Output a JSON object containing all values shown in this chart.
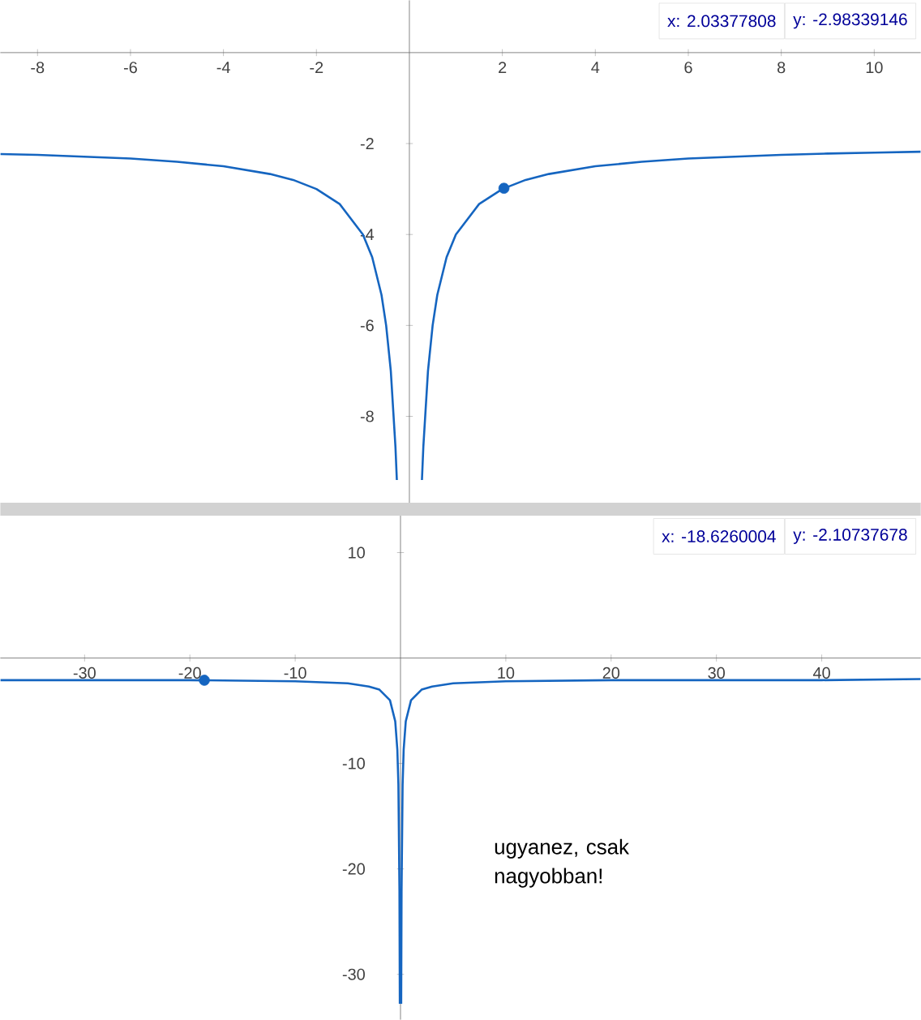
{
  "chart_data": [
    {
      "type": "line",
      "xlim": [
        -8.8,
        11
      ],
      "ylim": [
        -9.9,
        1.15
      ],
      "xticks": [
        -8,
        -6,
        -4,
        -2,
        2,
        4,
        6,
        8,
        10
      ],
      "yticks": [
        -2,
        -4,
        -6,
        -8
      ],
      "annotations": [
        "x: 2.03377808",
        "y: -2.98339146"
      ],
      "series": [
        {
          "color": "#1565c0",
          "x": [
            -8.8,
            -8,
            -7,
            -6,
            -5,
            -4,
            -3,
            -2.5,
            -2,
            -1.5,
            -1,
            -0.8,
            -0.6,
            -0.5,
            -0.4,
            -0.3,
            -0.27,
            0,
            0.27,
            0.3,
            0.4,
            0.5,
            0.6,
            0.8,
            1,
            1.5,
            2,
            2.5,
            3,
            4,
            5,
            6,
            7,
            8,
            9,
            10,
            11
          ],
          "values": [
            -2.23,
            -2.25,
            -2.29,
            -2.33,
            -2.4,
            -2.5,
            -2.67,
            -2.8,
            -3,
            -3.33,
            -4,
            -4.5,
            -5.33,
            -6,
            -7,
            -8.67,
            -9.4,
            null,
            -9.4,
            -8.67,
            -7,
            -6,
            -5.33,
            -4.5,
            -4,
            -3.33,
            -3,
            -2.8,
            -2.67,
            -2.5,
            -2.4,
            -2.33,
            -2.29,
            -2.25,
            -2.22,
            -2.2,
            -2.18
          ]
        },
        {
          "type": "scatter",
          "marker": "circle",
          "color": "#1565c0",
          "x": [
            2.03377808
          ],
          "values": [
            -2.98339146
          ]
        }
      ]
    },
    {
      "type": "line",
      "xlim": [
        -38,
        49.4
      ],
      "ylim": [
        -34.3,
        13.5
      ],
      "xticks": [
        -30,
        -20,
        -10,
        10,
        20,
        30,
        40
      ],
      "yticks": [
        10,
        -10,
        -20,
        -30
      ],
      "annotations": [
        "x: -18.6260004",
        "y: -2.10737678",
        "ugyanez, csak nagyobban!"
      ],
      "series": [
        {
          "color": "#1565c0",
          "x": [
            -38,
            -30,
            -20,
            -10,
            -5,
            -3,
            -2,
            -1,
            -0.5,
            -0.3,
            -0.2,
            -0.1,
            -0.065,
            0,
            0.065,
            0.1,
            0.2,
            0.3,
            0.5,
            1,
            2,
            3,
            5,
            10,
            20,
            30,
            40,
            49.4
          ],
          "values": [
            -2.1,
            -2.1,
            -2.1,
            -2.2,
            -2.4,
            -2.7,
            -3,
            -4,
            -6,
            -8.7,
            -12,
            -22,
            -32.8,
            null,
            -32.8,
            -22,
            -12,
            -8.7,
            -6,
            -4,
            -3,
            -2.7,
            -2.4,
            -2.2,
            -2.1,
            -2.1,
            -2.1,
            -2.0
          ]
        },
        {
          "type": "scatter",
          "marker": "circle",
          "color": "#1565c0",
          "x": [
            -18.6260004
          ],
          "values": [
            -2.10737678
          ]
        }
      ]
    }
  ]
}
